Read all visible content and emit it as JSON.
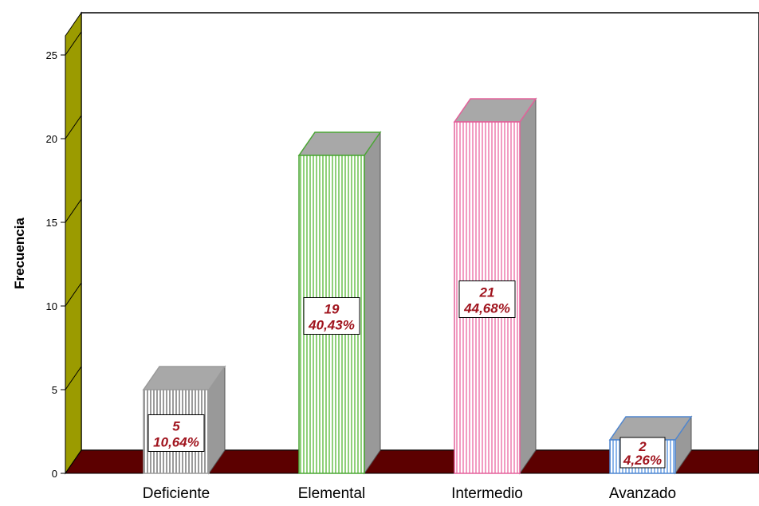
{
  "chart_data": {
    "type": "bar",
    "categories": [
      "Deficiente",
      "Elemental",
      "Intermedio",
      "Avanzado"
    ],
    "values": [
      5,
      19,
      21,
      2
    ],
    "percent_labels": [
      "10,64%",
      "40,43%",
      "44,68%",
      "4,26%"
    ],
    "count_labels": [
      "5",
      "19",
      "21",
      "2"
    ],
    "ylabel": "Frecuencia",
    "xlabel": "",
    "title": "",
    "ylim": [
      0,
      26
    ],
    "yticks": [
      "0",
      "5",
      "10",
      "15",
      "20",
      "25"
    ],
    "ytick_values": [
      0,
      5,
      10,
      15,
      20,
      25
    ],
    "style": "3d",
    "grid": false,
    "bar_colors": [
      "#9a9a9a",
      "#4aa534",
      "#e4609a",
      "#4f86cf"
    ],
    "wall_color": "#9b9b00",
    "floor_color": "#5c0000",
    "label_color": "#a0141e"
  }
}
